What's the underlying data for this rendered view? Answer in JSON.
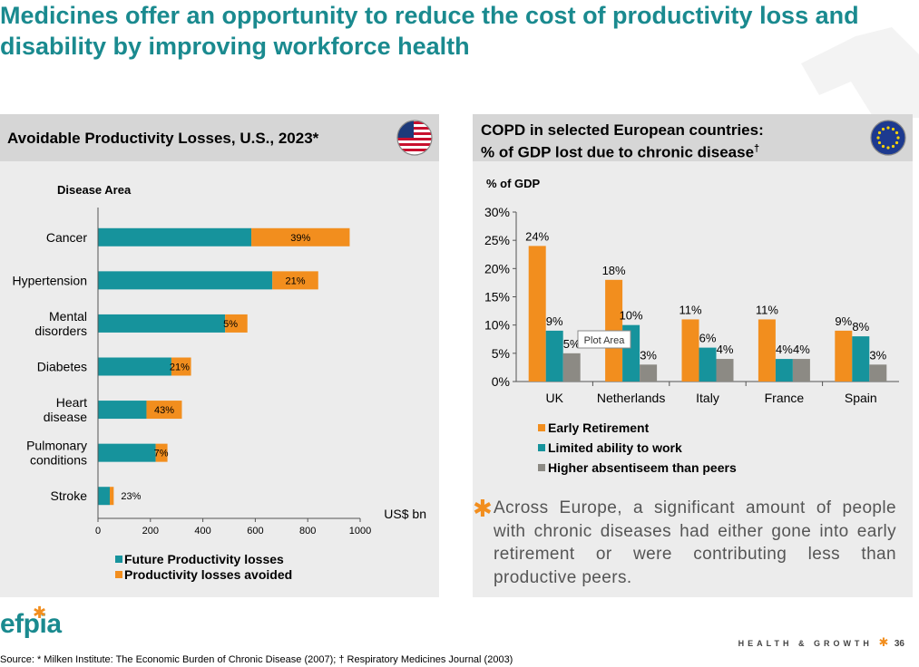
{
  "title": "Medicines offer an opportunity to reduce the cost of productivity loss and disability by improving workforce health",
  "left_panel": {
    "header": "Avoidable Productivity Losses, U.S., 2023*"
  },
  "right_panel": {
    "header_line1": "COPD in selected European countries:",
    "header_line2": "% of GDP lost due to chronic disease",
    "header_dagger": "†"
  },
  "tooltip": "Plot Area",
  "bullet_star": "✱",
  "bullet_text": "Across Europe, a significant amount of people with chronic diseases had either gone into early retirement or were contributing less than productive peers.",
  "logo": {
    "text": "efpia",
    "star": "✱"
  },
  "footer": {
    "label": "HEALTH & GROWTH",
    "star": "✱",
    "page": "36"
  },
  "source": "Source: * Milken Institute: The Economic Burden of Chronic Disease (2007); † Respiratory Medicines Journal (2003)",
  "colors": {
    "teal": "#16939c",
    "orange": "#f28e1e",
    "gray": "#8c8a84",
    "title": "#1a8a8f"
  },
  "chart_data": [
    {
      "type": "bar",
      "orientation": "horizontal",
      "stacked": true,
      "title": "Avoidable Productivity Losses, U.S., 2023*",
      "ylabel": "Disease Area",
      "xlabel": "US$ bn",
      "xlim": [
        0,
        1000
      ],
      "xticks": [
        "0",
        "200",
        "400",
        "600",
        "800",
        "1000"
      ],
      "categories": [
        "Cancer",
        "Hypertension",
        "Mental disorders",
        "Diabetes",
        "Heart disease",
        "Pulmonary conditions",
        "Stroke"
      ],
      "category_lines": [
        [
          "Cancer"
        ],
        [
          "Hypertension"
        ],
        [
          "Mental",
          "disorders"
        ],
        [
          "Diabetes"
        ],
        [
          "Heart",
          "disease"
        ],
        [
          "Pulmonary",
          "conditions"
        ],
        [
          "Stroke"
        ]
      ],
      "series": [
        {
          "name": "Future Productivity losses",
          "color": "#16939c",
          "values": [
            585,
            665,
            485,
            280,
            185,
            220,
            45
          ]
        },
        {
          "name": "Productivity losses avoided",
          "color": "#f28e1e",
          "values": [
            375,
            175,
            85,
            75,
            135,
            45,
            15
          ]
        }
      ],
      "labels": [
        "39%",
        "21%",
        "5%",
        "21%",
        "43%",
        "7%",
        "23%"
      ]
    },
    {
      "type": "bar",
      "orientation": "vertical",
      "title": "COPD in selected European countries: % of GDP lost due to chronic disease",
      "ylabel": "% of GDP",
      "ylim": [
        0,
        30
      ],
      "yticks": [
        "0%",
        "5%",
        "10%",
        "15%",
        "20%",
        "25%",
        "30%"
      ],
      "categories": [
        "UK",
        "Netherlands",
        "Italy",
        "France",
        "Spain"
      ],
      "series": [
        {
          "name": "Early Retirement",
          "color": "#f28e1e",
          "values": [
            24,
            18,
            11,
            11,
            9
          ],
          "labels": [
            "24%",
            "18%",
            "11%",
            "11%",
            "9%"
          ]
        },
        {
          "name": "Limited ability to work",
          "color": "#16939c",
          "values": [
            9,
            10,
            6,
            4,
            8
          ],
          "labels": [
            "9%",
            "10%",
            "6%",
            "4%",
            "8%"
          ]
        },
        {
          "name": "Higher absentiseem than peers",
          "color": "#8c8a84",
          "values": [
            5,
            3,
            4,
            4,
            3
          ],
          "labels": [
            "5%",
            "3%",
            "4%",
            "4%",
            "3%"
          ]
        }
      ]
    }
  ]
}
